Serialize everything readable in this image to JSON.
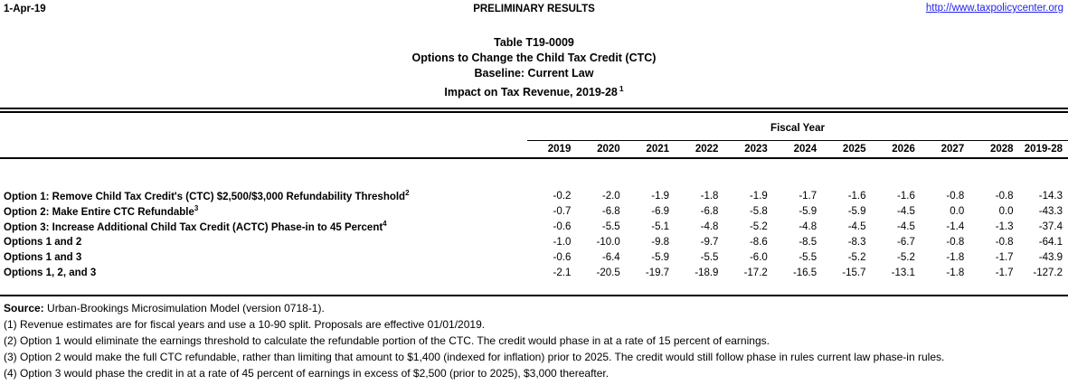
{
  "page": {
    "date": "1-Apr-19",
    "status": "PRELIMINARY RESULTS",
    "link": "http://www.taxpolicycenter.org",
    "link_color": "#2222ee"
  },
  "title": {
    "line1": "Table T19-0009",
    "line2": "Options to Change the Child Tax Credit (CTC)",
    "line3": "Baseline: Current Law",
    "line4": "Impact on Tax Revenue, 2019-28",
    "line4_sup": "1"
  },
  "table": {
    "group_header": "Fiscal Year",
    "columns": [
      "2019",
      "2020",
      "2021",
      "2022",
      "2023",
      "2024",
      "2025",
      "2026",
      "2027",
      "2028",
      "2019-28"
    ],
    "rows": [
      {
        "label": "Option 1: Remove Child Tax Credit's (CTC) $2,500/$3,000 Refundability Threshold",
        "sup": "2",
        "values": [
          "-0.2",
          "-2.0",
          "-1.9",
          "-1.8",
          "-1.9",
          "-1.7",
          "-1.6",
          "-1.6",
          "-0.8",
          "-0.8",
          "-14.3"
        ]
      },
      {
        "label": "Option 2: Make Entire CTC Refundable",
        "sup": "3",
        "values": [
          "-0.7",
          "-6.8",
          "-6.9",
          "-6.8",
          "-5.8",
          "-5.9",
          "-5.9",
          "-4.5",
          "0.0",
          "0.0",
          "-43.3"
        ]
      },
      {
        "label": "Option 3: Increase Additional Child Tax Credit (ACTC) Phase-in to 45 Percent",
        "sup": "4",
        "values": [
          "-0.6",
          "-5.5",
          "-5.1",
          "-4.8",
          "-5.2",
          "-4.8",
          "-4.5",
          "-4.5",
          "-1.4",
          "-1.3",
          "-37.4"
        ]
      },
      {
        "label": "Options 1 and 2",
        "sup": "",
        "values": [
          "-1.0",
          "-10.0",
          "-9.8",
          "-9.7",
          "-8.6",
          "-8.5",
          "-8.3",
          "-6.7",
          "-0.8",
          "-0.8",
          "-64.1"
        ]
      },
      {
        "label": "Options 1 and 3",
        "sup": "",
        "values": [
          "-0.6",
          "-6.4",
          "-5.9",
          "-5.5",
          "-6.0",
          "-5.5",
          "-5.2",
          "-5.2",
          "-1.8",
          "-1.7",
          "-43.9"
        ]
      },
      {
        "label": "Options 1, 2, and 3",
        "sup": "",
        "values": [
          "-2.1",
          "-20.5",
          "-19.7",
          "-18.9",
          "-17.2",
          "-16.5",
          "-15.7",
          "-13.1",
          "-1.8",
          "-1.7",
          "-127.2"
        ]
      }
    ]
  },
  "footnotes": {
    "source_label": "Source:",
    "source_text": " Urban-Brookings Microsimulation Model (version 0718-1).",
    "notes": [
      "(1) Revenue estimates are for fiscal years and use a 10-90 split. Proposals are effective 01/01/2019.",
      "(2) Option 1 would eliminate the earnings threshold to calculate the refundable portion of the CTC. The credit would phase in at a rate of 15 percent of earnings.",
      "(3) Option 2 would make the full CTC refundable, rather than limiting that amount to $1,400 (indexed for inflation) prior to 2025. The credit would still follow phase in rules current law phase-in rules.",
      "(4) Option 3 would phase the credit in at a rate of 45 percent of earnings in excess of $2,500 (prior to 2025), $3,000 thereafter."
    ]
  }
}
